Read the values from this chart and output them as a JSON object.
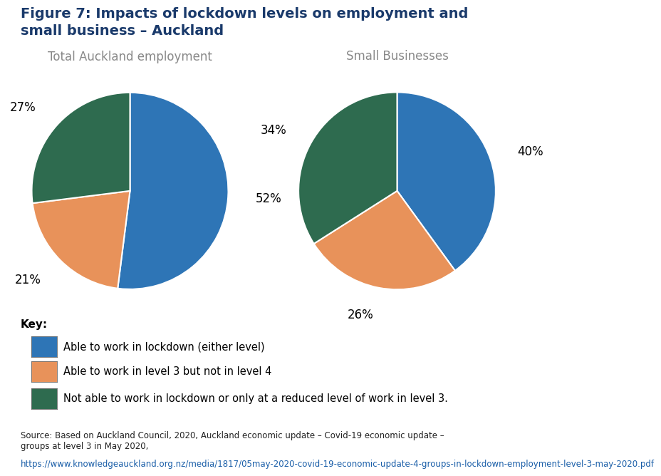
{
  "title_line1": "Figure 7: Impacts of lockdown levels on employment and",
  "title_line2": "small business – Auckland",
  "title_color": "#1a3a6b",
  "title_fontsize": 14,
  "pie1_title": "Total Auckland employment",
  "pie2_title": "Small Businesses",
  "pie_title_color": "#888888",
  "pie_title_fontsize": 12,
  "pie1_values": [
    52,
    21,
    27
  ],
  "pie2_values": [
    40,
    26,
    34
  ],
  "colors": [
    "#2e75b6",
    "#e8925a",
    "#2e6b4f"
  ],
  "pie1_pct_labels": [
    "52%",
    "21%",
    "27%"
  ],
  "pie2_pct_labels": [
    "40%",
    "26%",
    "34%"
  ],
  "legend_labels": [
    "Able to work in lockdown (either level)",
    "Able to work in level 3 but not in level 4",
    "Not able to work in lockdown or only at a reduced level of work in level 3."
  ],
  "key_label": "Key:",
  "source_plain": "Source: Based on Auckland Council, 2020, Auckland economic update – Covid-19 economic update –\ngroups at level 3 in May 2020, ",
  "source_link": "https://www.knowledgeauckland.org.nz/media/1817/05may-2020-covid-19-economic-update-4-groups-in-lockdown-employment-level-3-may-2020.pdf",
  "bg_color": "#ffffff",
  "pct_fontsize": 12,
  "legend_fontsize": 10.5,
  "source_fontsize": 8.5
}
